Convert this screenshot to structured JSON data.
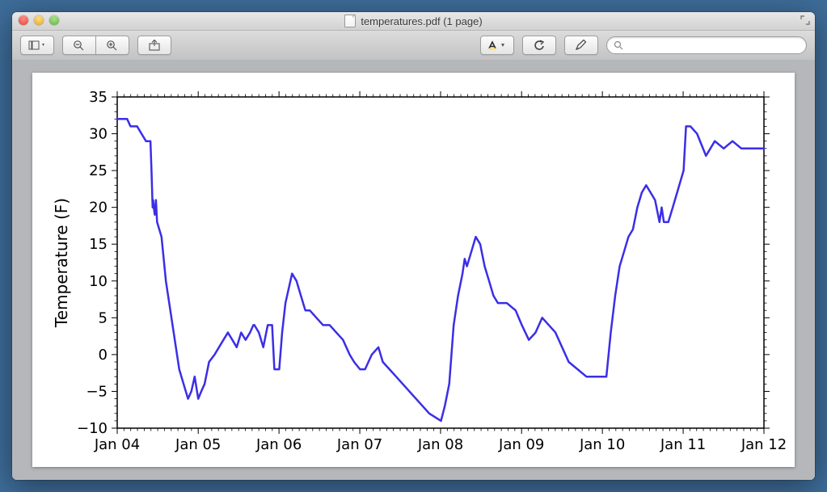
{
  "window": {
    "title": "temperatures.pdf (1 page)"
  },
  "toolbar": {
    "search_placeholder": ""
  },
  "chart": {
    "type": "line",
    "ylabel": "Temperature (F)",
    "ylim": [
      -10,
      35
    ],
    "ytick_step": 5,
    "yticks": [
      -10,
      -5,
      0,
      5,
      10,
      15,
      20,
      25,
      30,
      35
    ],
    "xticks": [
      "Jan 04",
      "Jan 05",
      "Jan 06",
      "Jan 07",
      "Jan 08",
      "Jan 09",
      "Jan 10",
      "Jan 11",
      "Jan 12"
    ],
    "xlim_days": [
      0,
      2922
    ],
    "line_color": "#3b2ee6",
    "line_width": 2.5,
    "background_color": "#ffffff",
    "axis_color": "#000000",
    "tick_fontsize": 18,
    "label_fontsize": 20,
    "data": [
      [
        0,
        32
      ],
      [
        30,
        32
      ],
      [
        45,
        32
      ],
      [
        60,
        31
      ],
      [
        90,
        31
      ],
      [
        110,
        30
      ],
      [
        130,
        29
      ],
      [
        150,
        29
      ],
      [
        155,
        25
      ],
      [
        160,
        20
      ],
      [
        162,
        21
      ],
      [
        165,
        20
      ],
      [
        170,
        19
      ],
      [
        175,
        21
      ],
      [
        180,
        18
      ],
      [
        200,
        16
      ],
      [
        220,
        10
      ],
      [
        240,
        6
      ],
      [
        260,
        2
      ],
      [
        280,
        -2
      ],
      [
        300,
        -4
      ],
      [
        320,
        -6
      ],
      [
        335,
        -5
      ],
      [
        350,
        -3
      ],
      [
        366,
        -6
      ],
      [
        380,
        -5
      ],
      [
        395,
        -4
      ],
      [
        415,
        -1
      ],
      [
        440,
        0
      ],
      [
        460,
        1
      ],
      [
        480,
        2
      ],
      [
        500,
        3
      ],
      [
        520,
        2
      ],
      [
        540,
        1
      ],
      [
        560,
        3
      ],
      [
        580,
        2
      ],
      [
        600,
        3
      ],
      [
        615,
        4
      ],
      [
        620,
        4
      ],
      [
        640,
        3
      ],
      [
        660,
        1
      ],
      [
        680,
        4
      ],
      [
        700,
        4
      ],
      [
        710,
        -2
      ],
      [
        732,
        -2
      ],
      [
        745,
        3
      ],
      [
        760,
        7
      ],
      [
        775,
        9
      ],
      [
        790,
        11
      ],
      [
        810,
        10
      ],
      [
        830,
        8
      ],
      [
        850,
        6
      ],
      [
        870,
        6
      ],
      [
        900,
        5
      ],
      [
        930,
        4
      ],
      [
        960,
        4
      ],
      [
        990,
        3
      ],
      [
        1020,
        2
      ],
      [
        1050,
        0
      ],
      [
        1070,
        -1
      ],
      [
        1097,
        -2
      ],
      [
        1120,
        -2
      ],
      [
        1150,
        0
      ],
      [
        1180,
        1
      ],
      [
        1200,
        -1
      ],
      [
        1230,
        -2
      ],
      [
        1260,
        -3
      ],
      [
        1290,
        -4
      ],
      [
        1320,
        -5
      ],
      [
        1350,
        -6
      ],
      [
        1380,
        -7
      ],
      [
        1410,
        -8
      ],
      [
        1463,
        -9
      ],
      [
        1480,
        -7
      ],
      [
        1500,
        -4
      ],
      [
        1520,
        4
      ],
      [
        1540,
        8
      ],
      [
        1560,
        11
      ],
      [
        1570,
        13
      ],
      [
        1580,
        12
      ],
      [
        1600,
        14
      ],
      [
        1620,
        16
      ],
      [
        1640,
        15
      ],
      [
        1660,
        12
      ],
      [
        1680,
        10
      ],
      [
        1700,
        8
      ],
      [
        1720,
        7
      ],
      [
        1760,
        7
      ],
      [
        1800,
        6
      ],
      [
        1828,
        4
      ],
      [
        1860,
        2
      ],
      [
        1890,
        3
      ],
      [
        1920,
        5
      ],
      [
        1950,
        4
      ],
      [
        1980,
        3
      ],
      [
        2010,
        1
      ],
      [
        2040,
        -1
      ],
      [
        2080,
        -2
      ],
      [
        2120,
        -3
      ],
      [
        2160,
        -3
      ],
      [
        2194,
        -3
      ],
      [
        2210,
        -3
      ],
      [
        2230,
        3
      ],
      [
        2250,
        8
      ],
      [
        2270,
        12
      ],
      [
        2290,
        14
      ],
      [
        2310,
        16
      ],
      [
        2330,
        17
      ],
      [
        2350,
        20
      ],
      [
        2370,
        22
      ],
      [
        2390,
        23
      ],
      [
        2410,
        22
      ],
      [
        2430,
        21
      ],
      [
        2450,
        18
      ],
      [
        2460,
        20
      ],
      [
        2470,
        18
      ],
      [
        2490,
        18
      ],
      [
        2510,
        20
      ],
      [
        2559,
        25
      ],
      [
        2570,
        31
      ],
      [
        2590,
        31
      ],
      [
        2620,
        30
      ],
      [
        2660,
        27
      ],
      [
        2700,
        29
      ],
      [
        2740,
        28
      ],
      [
        2780,
        29
      ],
      [
        2820,
        28
      ],
      [
        2880,
        28
      ],
      [
        2922,
        28
      ]
    ]
  }
}
